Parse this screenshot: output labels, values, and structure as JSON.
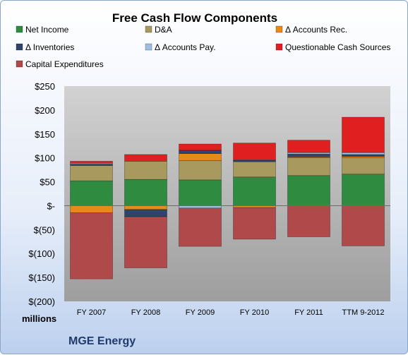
{
  "chart_data": {
    "type": "bar",
    "stacked": true,
    "title": "Free Cash Flow Components",
    "units_label": "millions",
    "company": "MGE Energy",
    "categories": [
      "FY 2007",
      "FY 2008",
      "FY 2009",
      "FY 2010",
      "FY 2011",
      "TTM 9-2012"
    ],
    "y_tick_labels": [
      "$250",
      "$200",
      "$150",
      "$100",
      "$50",
      "$-",
      "$(50)",
      "$(100)",
      "$(150)",
      "$(200)"
    ],
    "ylim": [
      -200,
      250
    ],
    "grid": false,
    "legend": "top",
    "series": [
      {
        "name": "Net Income",
        "color": "#2e8b3f",
        "values": [
          52,
          55,
          54,
          60,
          63,
          66
        ]
      },
      {
        "name": "D&A",
        "color": "#a89a5e",
        "values": [
          32,
          38,
          40,
          32,
          37,
          34
        ]
      },
      {
        "name": "Δ Accounts Rec.",
        "color": "#e8891a",
        "values": [
          -15,
          -8,
          15,
          -4,
          2,
          3
        ]
      },
      {
        "name": "Δ Inventories",
        "color": "#2f4468",
        "values": [
          3,
          -15,
          7,
          3,
          6,
          4
        ]
      },
      {
        "name": "Δ Accounts Pay.",
        "color": "#9fbde2",
        "values": [
          2,
          0,
          -5,
          1,
          3,
          4
        ]
      },
      {
        "name": "Questionable Cash Sources",
        "color": "#e02020",
        "values": [
          4,
          14,
          13,
          35,
          26,
          74
        ]
      },
      {
        "name": "Capital Expenditures",
        "color": "#b04a4a",
        "values": [
          -138,
          -107,
          -80,
          -66,
          -65,
          -84
        ]
      }
    ]
  }
}
